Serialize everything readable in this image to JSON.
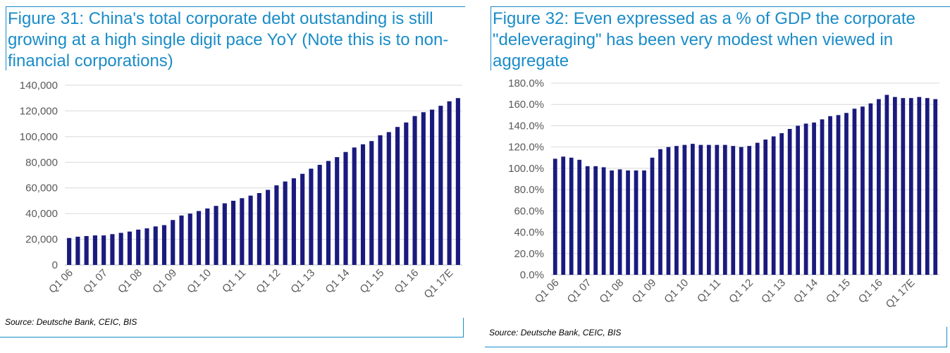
{
  "colors": {
    "bar": "#1a1a7e",
    "title": "#1a8cc8",
    "grid": "#d9d9d9",
    "axis_text": "#595959"
  },
  "charts": {
    "left": {
      "title": "Figure 31: China's total corporate debt outstanding is still growing at a high single digit pace YoY (Note this is to non-financial corporations)",
      "source": "Source: Deutsche Bank, CEIC, BIS"
    },
    "right": {
      "title": "Figure 32: Even expressed as a % of GDP the corporate \"deleveraging\" has been very modest when viewed in aggregate",
      "source": "Source: Deutsche Bank, CEIC, BIS"
    }
  },
  "chart_data": [
    {
      "type": "bar",
      "title": "Figure 31: China's total corporate debt outstanding is still growing at a high single digit pace YoY (Note this is to non-financial corporations)",
      "xlabel": "",
      "ylabel": "",
      "ylim": [
        0,
        140000
      ],
      "yticks": [
        "0",
        "20,000",
        "40,000",
        "60,000",
        "80,000",
        "100,000",
        "120,000",
        "140,000"
      ],
      "xtick_labels": [
        "Q1 06",
        "Q1 07",
        "Q1 08",
        "Q1 09",
        "Q1 10",
        "Q1 11",
        "Q1 12",
        "Q1 13",
        "Q1 14",
        "Q1 15",
        "Q1 16",
        "Q1 17E"
      ],
      "xtick_every": 4,
      "grid": true,
      "legend": "none",
      "values": [
        21000,
        22000,
        22500,
        23000,
        23000,
        24000,
        25000,
        26000,
        27500,
        28500,
        30000,
        31000,
        35000,
        38500,
        40000,
        42000,
        44000,
        46000,
        48000,
        50000,
        52000,
        54000,
        56000,
        58500,
        62000,
        65000,
        67500,
        71000,
        75000,
        78000,
        81000,
        84000,
        88000,
        91500,
        94000,
        96500,
        101000,
        103500,
        107500,
        111000,
        116000,
        119000,
        121000,
        124000,
        127500,
        130000
      ]
    },
    {
      "type": "bar",
      "title": "Figure 32: Even expressed as a % of GDP the corporate \"deleveraging\" has been very modest when viewed in aggregate",
      "xlabel": "",
      "ylabel": "",
      "ylim": [
        0,
        180
      ],
      "yticks": [
        "0.0%",
        "20.0%",
        "40.0%",
        "60.0%",
        "80.0%",
        "100.0%",
        "120.0%",
        "140.0%",
        "160.0%",
        "180.0%"
      ],
      "xtick_labels": [
        "Q1 06",
        "Q1 07",
        "Q1 08",
        "Q1 09",
        "Q1 10",
        "Q1 11",
        "Q1 12",
        "Q1 13",
        "Q1 14",
        "Q1 15",
        "Q1 16",
        "Q1 17E"
      ],
      "xtick_every": 4,
      "grid": true,
      "legend": "none",
      "values": [
        109,
        111,
        110,
        108,
        102,
        102,
        101,
        98,
        99,
        98,
        98,
        98,
        110,
        118,
        120,
        121,
        122,
        123,
        122,
        122,
        122,
        122,
        121,
        120,
        121,
        124,
        127,
        130,
        133,
        137,
        140,
        142,
        143,
        146,
        149,
        150,
        152,
        156,
        158,
        161,
        165,
        169,
        167,
        166,
        166,
        167,
        166,
        165
      ]
    }
  ]
}
